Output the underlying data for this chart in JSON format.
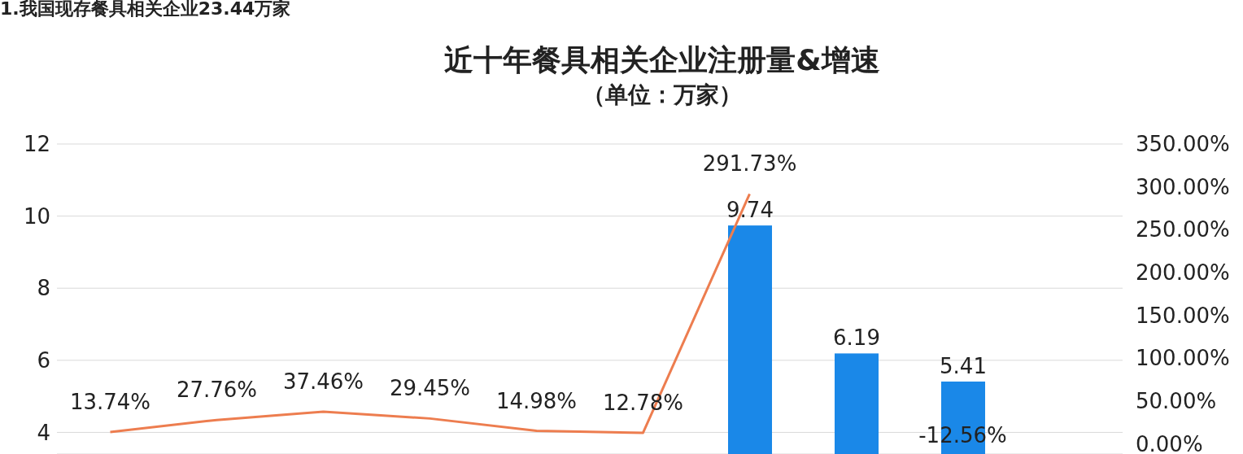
{
  "chart_data": {
    "type": "bar",
    "title": "近十年餐具相关企业注册量&增速",
    "subtitle": "（单位：万家）",
    "annotations": [
      "1.我国现存餐具相关企业23.44万家",
      "-12.56%"
    ],
    "categories": [
      null,
      null,
      null,
      null,
      null,
      null,
      null,
      null,
      null,
      null
    ],
    "series": [
      {
        "color": "#1a88e8",
        "values": [
          null,
          null,
          null,
          null,
          null,
          null,
          9.74,
          6.19,
          5.41,
          null
        ],
        "value_labels": [
          null,
          null,
          null,
          null,
          null,
          null,
          "9.74",
          "6.19",
          "5.41",
          null
        ]
      },
      {
        "type": "line",
        "axis": "y2",
        "color": "#ed7d4f",
        "values": [
          13.74,
          27.76,
          37.46,
          29.45,
          14.98,
          12.78,
          291.73,
          null,
          null,
          null
        ],
        "value_labels": [
          "13.74%",
          "27.76%",
          "37.46%",
          "29.45%",
          "14.98%",
          "12.78%",
          "291.73%",
          null,
          null,
          null
        ]
      }
    ],
    "ylim": [
      3.4,
      12
    ],
    "yticks": [
      4,
      6,
      8,
      10,
      12
    ],
    "y2lim": [
      -12,
      350
    ],
    "y2ticks": [
      {
        "value": 0,
        "label": "0.00%"
      },
      {
        "value": 50,
        "label": "50.00%"
      },
      {
        "value": 100,
        "label": "100.00%"
      },
      {
        "value": 150,
        "label": "150.00%"
      },
      {
        "value": 200,
        "label": "200.00%"
      },
      {
        "value": 250,
        "label": "250.00%"
      },
      {
        "value": 300,
        "label": "300.00%"
      },
      {
        "value": 350,
        "label": "350.00%"
      }
    ],
    "grid": "y",
    "legend": false,
    "marker": "none",
    "line_style": "solid"
  }
}
